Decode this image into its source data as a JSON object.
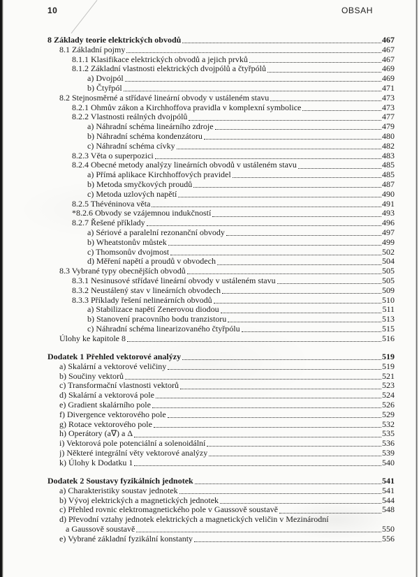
{
  "page": {
    "background_color": "#fbfbf9",
    "text_color": "#1c1c1c",
    "scan_edge_color": "#1d1d1d"
  },
  "header": {
    "page_number": "10",
    "title": "OBSAH"
  },
  "toc": {
    "entries": [
      {
        "label": "8 Základy teorie elektrických obvodů",
        "page": "467",
        "level": 0,
        "bold": true,
        "gap": false
      },
      {
        "label": "8.1 Základní pojmy",
        "page": "467",
        "level": 1,
        "bold": false,
        "gap": false
      },
      {
        "label": "8.1.1 Klasifikace elektrických obvodů a jejich prvků",
        "page": "467",
        "level": 2,
        "bold": false,
        "gap": false
      },
      {
        "label": "8.1.2 Základní vlastnosti elektrických dvojpólů a čtyřpólů",
        "page": "469",
        "level": 2,
        "bold": false,
        "gap": false
      },
      {
        "label": "a) Dvojpól",
        "page": "469",
        "level": 3,
        "bold": false,
        "gap": false
      },
      {
        "label": "b) Čtyřpól",
        "page": "471",
        "level": 3,
        "bold": false,
        "gap": false
      },
      {
        "label": "8.2 Stejnosměrné a střídavé lineární obvody v ustáleném stavu",
        "page": "473",
        "level": 1,
        "bold": false,
        "gap": false
      },
      {
        "label": "8.2.1 Ohmův zákon a Kirchhoffova pravidla v komplexní symbolice",
        "page": "473",
        "level": 2,
        "bold": false,
        "gap": false
      },
      {
        "label": "8.2.2 Vlastnosti reálných dvojpólů",
        "page": "477",
        "level": 2,
        "bold": false,
        "gap": false
      },
      {
        "label": "a) Náhradní schéma lineárního zdroje",
        "page": "479",
        "level": 3,
        "bold": false,
        "gap": false
      },
      {
        "label": "b) Náhradní schéma kondenzátoru",
        "page": "480",
        "level": 3,
        "bold": false,
        "gap": false
      },
      {
        "label": "c) Náhradní schéma cívky",
        "page": "482",
        "level": 3,
        "bold": false,
        "gap": false
      },
      {
        "label": "8.2.3 Věta o superpozici",
        "page": "483",
        "level": 2,
        "bold": false,
        "gap": false
      },
      {
        "label": "8.2.4 Obecné metody analýzy lineárních obvodů v ustáleném stavu",
        "page": "485",
        "level": 2,
        "bold": false,
        "gap": false
      },
      {
        "label": "a) Přímá aplikace Kirchhoffových pravidel",
        "page": "485",
        "level": 3,
        "bold": false,
        "gap": false
      },
      {
        "label": "b) Metoda smyčkových proudů",
        "page": "487",
        "level": 3,
        "bold": false,
        "gap": false
      },
      {
        "label": "c) Metoda uzlových napětí",
        "page": "490",
        "level": 3,
        "bold": false,
        "gap": false
      },
      {
        "label": "8.2.5 Thévéninova věta",
        "page": "491",
        "level": 2,
        "bold": false,
        "gap": false
      },
      {
        "label": "*8.2.6 Obvody se vzájemnou indukčností",
        "page": "493",
        "level": 2,
        "bold": false,
        "gap": false
      },
      {
        "label": "8.2.7 Řešené příklady",
        "page": "496",
        "level": 2,
        "bold": false,
        "gap": false
      },
      {
        "label": "a) Sériové a paralelní rezonanční obvody",
        "page": "497",
        "level": 3,
        "bold": false,
        "gap": false
      },
      {
        "label": "b) Wheatstonův můstek",
        "page": "499",
        "level": 3,
        "bold": false,
        "gap": false
      },
      {
        "label": "c) Thomsonův dvojmost",
        "page": "502",
        "level": 3,
        "bold": false,
        "gap": false
      },
      {
        "label": "d) Měření napětí a proudů v obvodech",
        "page": "504",
        "level": 3,
        "bold": false,
        "gap": false
      },
      {
        "label": "8.3 Vybrané typy obecnějších obvodů",
        "page": "505",
        "level": 1,
        "bold": false,
        "gap": false
      },
      {
        "label": "8.3.1 Nesinusové střídavé lineární obvody v ustáleném stavu",
        "page": "505",
        "level": 2,
        "bold": false,
        "gap": false
      },
      {
        "label": "8.3.2 Neustálený stav v lineárních obvodech",
        "page": "509",
        "level": 2,
        "bold": false,
        "gap": false
      },
      {
        "label": "8.3.3 Příklady řešení nelineárních obvodů",
        "page": "510",
        "level": 2,
        "bold": false,
        "gap": false
      },
      {
        "label": "a) Stabilizace napětí Zenerovou diodou",
        "page": "511",
        "level": 3,
        "bold": false,
        "gap": false
      },
      {
        "label": "b) Stanovení pracovního bodu tranzistoru",
        "page": "513",
        "level": 3,
        "bold": false,
        "gap": false
      },
      {
        "label": "c) Náhradní schéma linearizovaného čtyřpólu",
        "page": "515",
        "level": 3,
        "bold": false,
        "gap": false
      },
      {
        "label": "Úlohy ke kapitole 8",
        "page": "516",
        "level": 1,
        "bold": false,
        "gap": false
      },
      {
        "label": "Dodatek 1 Přehled vektorové analýzy",
        "page": "519",
        "level": 0,
        "bold": true,
        "gap": true
      },
      {
        "label": "a) Skalární a vektorové veličiny",
        "page": "519",
        "level": 1,
        "bold": false,
        "gap": false
      },
      {
        "label": "b) Součiny vektorů",
        "page": "521",
        "level": 1,
        "bold": false,
        "gap": false
      },
      {
        "label": "c) Transformační vlastnosti vektorů",
        "page": "523",
        "level": 1,
        "bold": false,
        "gap": false
      },
      {
        "label": "d) Skalární a vektorová pole",
        "page": "524",
        "level": 1,
        "bold": false,
        "gap": false
      },
      {
        "label": "e) Gradient skalárního pole",
        "page": "526",
        "level": 1,
        "bold": false,
        "gap": false
      },
      {
        "label": "f) Divergence vektorového pole",
        "page": "529",
        "level": 1,
        "bold": false,
        "gap": false
      },
      {
        "label": "g) Rotace vektorového pole",
        "page": "532",
        "level": 1,
        "bold": false,
        "gap": false
      },
      {
        "label": "h) Operátory (a∇) a Δ",
        "page": "535",
        "level": 1,
        "bold": false,
        "gap": false
      },
      {
        "label": "i) Vektorová pole potenciální a solenoidální",
        "page": "536",
        "level": 1,
        "bold": false,
        "gap": false
      },
      {
        "label": "j) Některé integrální věty vektorové analýzy",
        "page": "539",
        "level": 1,
        "bold": false,
        "gap": false
      },
      {
        "label": "k) Úlohy k Dodatku 1",
        "page": "540",
        "level": 1,
        "bold": false,
        "gap": false
      },
      {
        "label": "Dodatek 2 Soustavy fyzikálních jednotek",
        "page": "541",
        "level": 0,
        "bold": true,
        "gap": true
      },
      {
        "label": "a) Charakteristiky soustav jednotek",
        "page": "541",
        "level": 1,
        "bold": false,
        "gap": false
      },
      {
        "label": "b) Vývoj elektrických a magnetických jednotek",
        "page": "544",
        "level": 1,
        "bold": false,
        "gap": false
      },
      {
        "label": "c) Přehled rovnic elektromagnetického pole v Gaussově soustavě",
        "page": "548",
        "level": 1,
        "bold": false,
        "gap": false
      },
      {
        "label": "d) Převodní vztahy jednotek elektrických a magnetických veličin v Mezinárodní",
        "page": "",
        "level": 1,
        "bold": false,
        "gap": false
      },
      {
        "label": "a Gaussově soustavě",
        "page": "550",
        "level": "c",
        "bold": false,
        "gap": false
      },
      {
        "label": "e) Vybrané základní fyzikální konstanty",
        "page": "556",
        "level": 1,
        "bold": false,
        "gap": false
      }
    ]
  }
}
